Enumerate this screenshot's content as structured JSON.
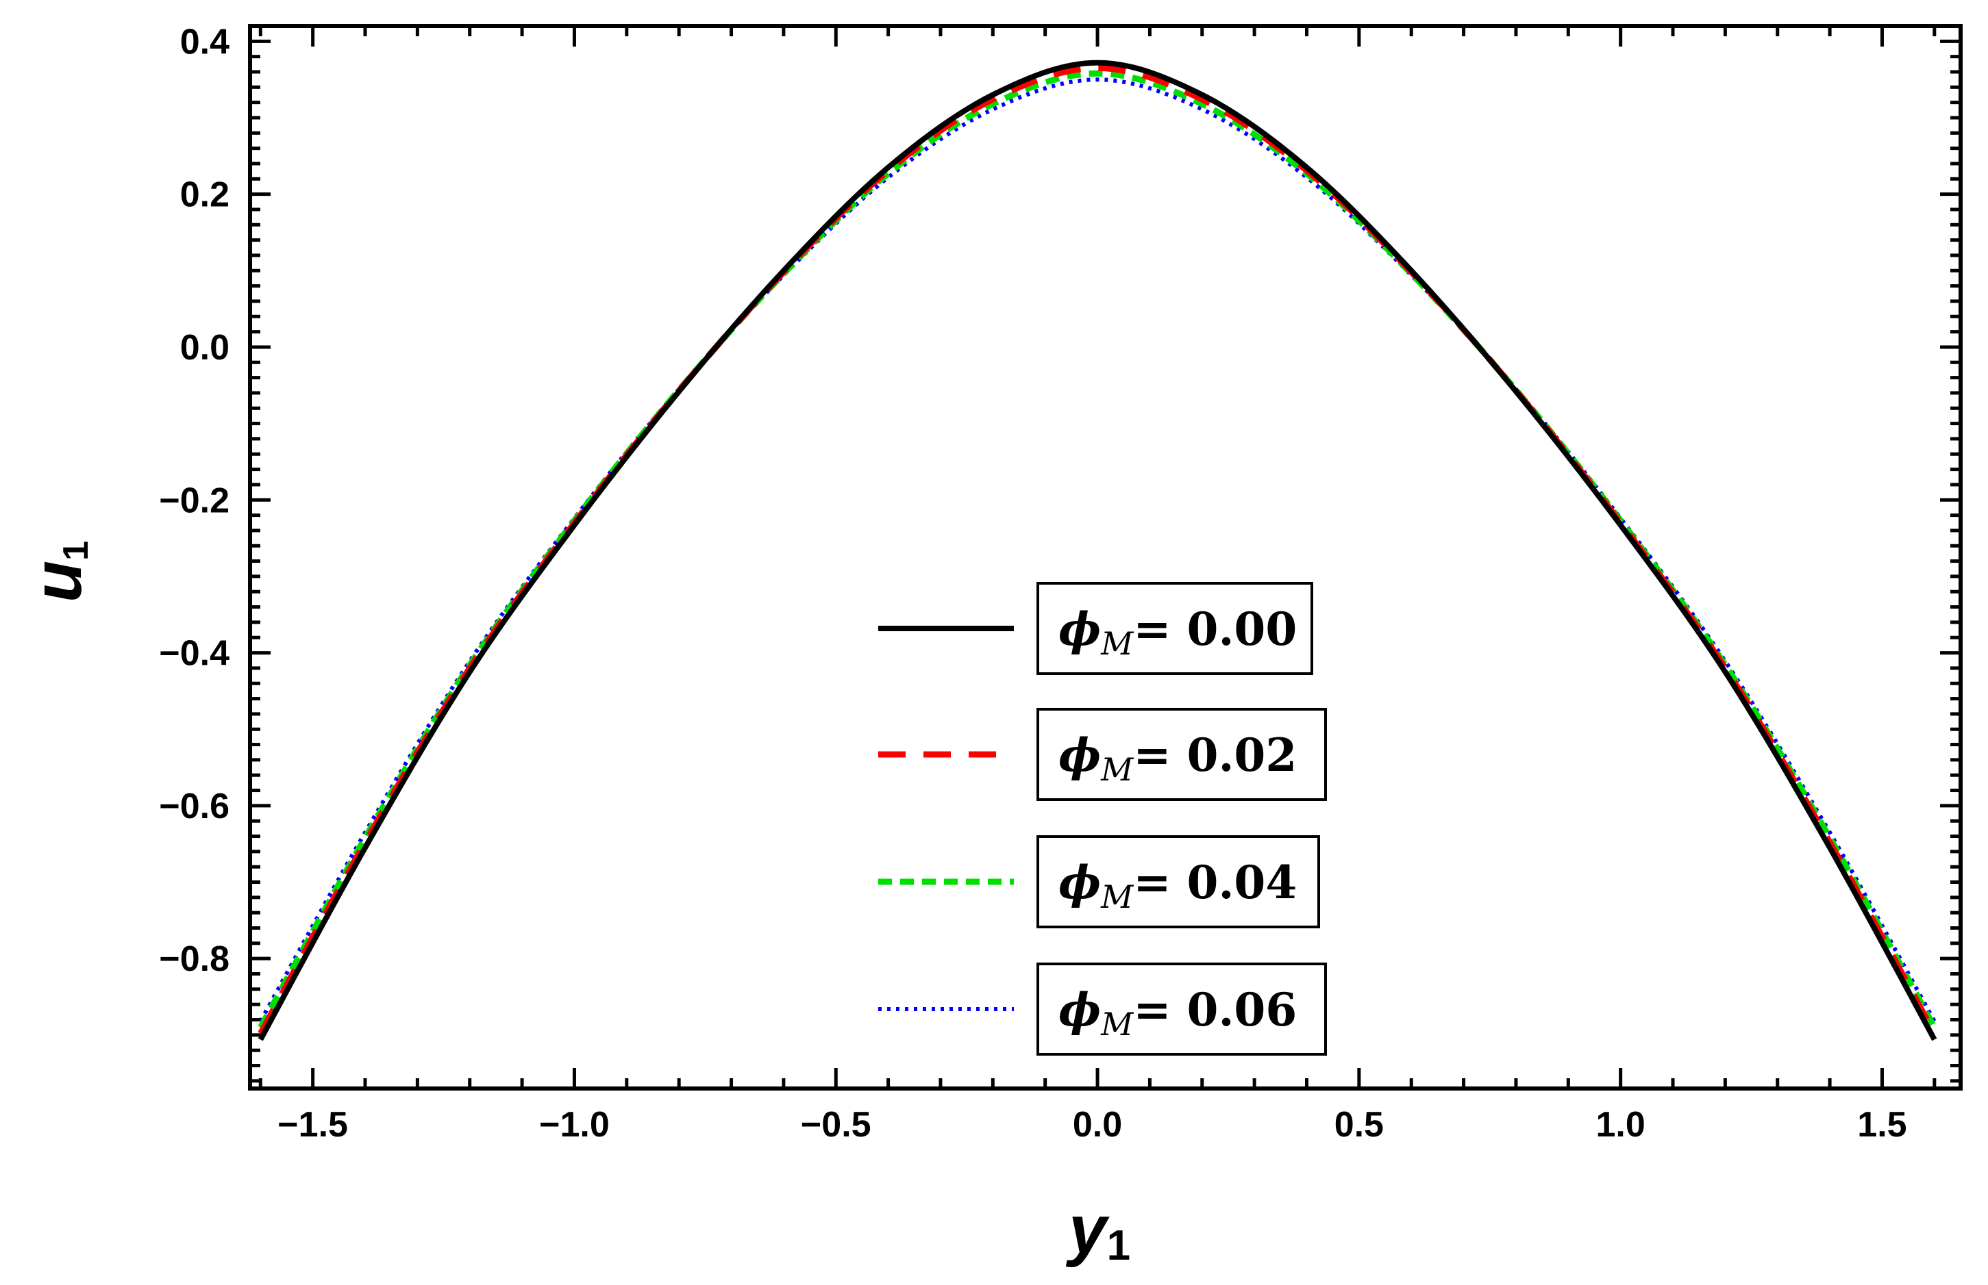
{
  "chart_data": {
    "type": "line",
    "title": "",
    "xlabel": "y",
    "xlabel_sub": "1",
    "ylabel": "u",
    "ylabel_sub": "1",
    "xlim": [
      -1.62,
      1.65
    ],
    "ylim": [
      -0.97,
      0.42
    ],
    "x_ticks": [
      -1.5,
      -1.0,
      -0.5,
      0.0,
      0.5,
      1.0,
      1.5
    ],
    "x_tick_labels": [
      "−1.5",
      "−1.0",
      "−0.5",
      "0.0",
      "0.5",
      "1.0",
      "1.5"
    ],
    "y_ticks": [
      0.4,
      0.2,
      0.0,
      -0.2,
      -0.4,
      -0.6,
      -0.8
    ],
    "y_tick_labels": [
      "0.4",
      "0.2",
      "0.0",
      "−0.2",
      "−0.4",
      "−0.6",
      "−0.8"
    ],
    "grid": false,
    "legend_position": "center-right",
    "x": [
      -1.6,
      -1.4,
      -1.2,
      -1.0,
      -0.8,
      -0.6,
      -0.4,
      -0.2,
      0.0,
      0.2,
      0.4,
      0.6,
      0.8,
      1.0,
      1.2,
      1.4,
      1.6
    ],
    "series": [
      {
        "name": "ϕM = 0.00",
        "symbol": "ϕ",
        "subscript": "M",
        "value_text": "= 0.00",
        "color": "#000000",
        "style": "solid",
        "values": [
          -0.906,
          -0.655,
          -0.425,
          -0.233,
          -0.058,
          0.1,
          0.235,
          0.33,
          0.372,
          0.33,
          0.235,
          0.1,
          -0.058,
          -0.233,
          -0.425,
          -0.655,
          -0.906
        ]
      },
      {
        "name": "ϕM = 0.02",
        "symbol": "ϕ",
        "subscript": "M",
        "value_text": "= 0.02",
        "color": "#ff0000",
        "style": "dashed",
        "values": [
          -0.898,
          -0.648,
          -0.42,
          -0.23,
          -0.057,
          0.098,
          0.231,
          0.324,
          0.365,
          0.324,
          0.231,
          0.098,
          -0.057,
          -0.23,
          -0.42,
          -0.648,
          -0.898
        ]
      },
      {
        "name": "ϕM= 0.04",
        "symbol": "ϕ",
        "subscript": "M",
        "value_text": "= 0.04",
        "color": "#00e000",
        "style": "shortdash",
        "values": [
          -0.89,
          -0.642,
          -0.416,
          -0.227,
          -0.056,
          0.096,
          0.227,
          0.318,
          0.358,
          0.318,
          0.227,
          0.096,
          -0.056,
          -0.227,
          -0.416,
          -0.642,
          -0.89
        ]
      },
      {
        "name": "ϕM = 0.06",
        "symbol": "ϕ",
        "subscript": "M",
        "value_text": "= 0.06",
        "color": "#0000ff",
        "style": "dotted",
        "values": [
          -0.882,
          -0.635,
          -0.411,
          -0.224,
          -0.055,
          0.094,
          0.222,
          0.311,
          0.35,
          0.311,
          0.222,
          0.094,
          -0.055,
          -0.224,
          -0.411,
          -0.635,
          -0.882
        ]
      }
    ]
  }
}
